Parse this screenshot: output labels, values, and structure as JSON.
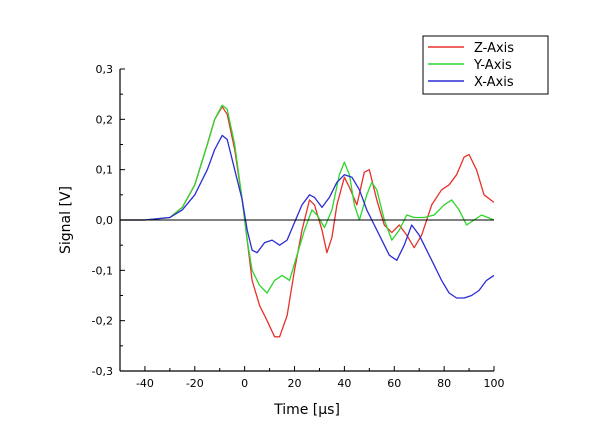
{
  "chart_data": {
    "type": "line",
    "title": "",
    "xlabel": "Time [µs]",
    "ylabel": "Signal [V]",
    "xlim": [
      -50,
      100
    ],
    "ylim": [
      -0.3,
      0.3
    ],
    "x_ticks": [
      -40,
      -20,
      0,
      20,
      40,
      60,
      80,
      100
    ],
    "x_tick_labels": [
      "-40",
      "-20",
      "0",
      "20",
      "40",
      "60",
      "80",
      "100"
    ],
    "y_ticks": [
      -0.3,
      -0.2,
      -0.1,
      0.0,
      0.1,
      0.2,
      0.3
    ],
    "y_tick_labels": [
      "-0,3",
      "-0,2",
      "-0,1",
      "0,0",
      "0,1",
      "0,2",
      "0,3"
    ],
    "grid": false,
    "zero_line": true,
    "legend_position": "top-right",
    "series": [
      {
        "name": "Z-Axis",
        "color": "#e8302c",
        "points": [
          [
            -50,
            0
          ],
          [
            -40,
            0
          ],
          [
            -30,
            0.005
          ],
          [
            -25,
            0.025
          ],
          [
            -20,
            0.07
          ],
          [
            -15,
            0.15
          ],
          [
            -12,
            0.2
          ],
          [
            -9,
            0.225
          ],
          [
            -7,
            0.21
          ],
          [
            -4,
            0.14
          ],
          [
            -1,
            0.04
          ],
          [
            1,
            -0.04
          ],
          [
            3,
            -0.12
          ],
          [
            6,
            -0.17
          ],
          [
            9,
            -0.2
          ],
          [
            12,
            -0.232
          ],
          [
            14,
            -0.232
          ],
          [
            17,
            -0.19
          ],
          [
            20,
            -0.1
          ],
          [
            23,
            -0.02
          ],
          [
            26,
            0.04
          ],
          [
            28,
            0.03
          ],
          [
            31,
            -0.02
          ],
          [
            33,
            -0.065
          ],
          [
            35,
            -0.035
          ],
          [
            37,
            0.03
          ],
          [
            40,
            0.085
          ],
          [
            42,
            0.065
          ],
          [
            45,
            0.03
          ],
          [
            48,
            0.095
          ],
          [
            50,
            0.1
          ],
          [
            53,
            0.04
          ],
          [
            56,
            -0.01
          ],
          [
            59,
            -0.025
          ],
          [
            62,
            -0.01
          ],
          [
            65,
            -0.03
          ],
          [
            68,
            -0.055
          ],
          [
            71,
            -0.03
          ],
          [
            75,
            0.03
          ],
          [
            79,
            0.06
          ],
          [
            82,
            0.07
          ],
          [
            85,
            0.09
          ],
          [
            88,
            0.125
          ],
          [
            90,
            0.13
          ],
          [
            93,
            0.1
          ],
          [
            96,
            0.05
          ],
          [
            100,
            0.035
          ]
        ]
      },
      {
        "name": "Y-Axis",
        "color": "#2cd62c",
        "points": [
          [
            -50,
            0
          ],
          [
            -40,
            0
          ],
          [
            -30,
            0.005
          ],
          [
            -25,
            0.025
          ],
          [
            -20,
            0.07
          ],
          [
            -15,
            0.15
          ],
          [
            -12,
            0.2
          ],
          [
            -9,
            0.228
          ],
          [
            -7,
            0.22
          ],
          [
            -4,
            0.15
          ],
          [
            -1,
            0.04
          ],
          [
            1,
            -0.04
          ],
          [
            3,
            -0.1
          ],
          [
            6,
            -0.13
          ],
          [
            9,
            -0.145
          ],
          [
            12,
            -0.12
          ],
          [
            15,
            -0.11
          ],
          [
            18,
            -0.12
          ],
          [
            21,
            -0.07
          ],
          [
            24,
            -0.02
          ],
          [
            27,
            0.02
          ],
          [
            29,
            0.01
          ],
          [
            32,
            -0.015
          ],
          [
            35,
            0.02
          ],
          [
            38,
            0.09
          ],
          [
            40,
            0.115
          ],
          [
            42,
            0.09
          ],
          [
            44,
            0.03
          ],
          [
            46,
            0.0
          ],
          [
            49,
            0.05
          ],
          [
            51,
            0.075
          ],
          [
            53,
            0.06
          ],
          [
            56,
            0.0
          ],
          [
            59,
            -0.04
          ],
          [
            62,
            -0.02
          ],
          [
            65,
            0.01
          ],
          [
            68,
            0.005
          ],
          [
            72,
            0.005
          ],
          [
            76,
            0.01
          ],
          [
            80,
            0.03
          ],
          [
            83,
            0.04
          ],
          [
            86,
            0.02
          ],
          [
            89,
            -0.01
          ],
          [
            92,
            0.0
          ],
          [
            95,
            0.01
          ],
          [
            100,
            0.0
          ]
        ]
      },
      {
        "name": "X-Axis",
        "color": "#2c2cd6",
        "points": [
          [
            -50,
            0
          ],
          [
            -40,
            0
          ],
          [
            -30,
            0.005
          ],
          [
            -25,
            0.02
          ],
          [
            -20,
            0.05
          ],
          [
            -15,
            0.1
          ],
          [
            -12,
            0.14
          ],
          [
            -9,
            0.168
          ],
          [
            -7,
            0.16
          ],
          [
            -4,
            0.1
          ],
          [
            -1,
            0.04
          ],
          [
            1,
            -0.02
          ],
          [
            3,
            -0.06
          ],
          [
            5,
            -0.065
          ],
          [
            8,
            -0.045
          ],
          [
            11,
            -0.04
          ],
          [
            14,
            -0.05
          ],
          [
            17,
            -0.04
          ],
          [
            20,
            -0.005
          ],
          [
            23,
            0.03
          ],
          [
            26,
            0.05
          ],
          [
            28,
            0.045
          ],
          [
            31,
            0.025
          ],
          [
            34,
            0.045
          ],
          [
            37,
            0.075
          ],
          [
            40,
            0.09
          ],
          [
            43,
            0.085
          ],
          [
            46,
            0.06
          ],
          [
            49,
            0.02
          ],
          [
            52,
            -0.01
          ],
          [
            55,
            -0.04
          ],
          [
            58,
            -0.07
          ],
          [
            61,
            -0.08
          ],
          [
            64,
            -0.05
          ],
          [
            67,
            -0.01
          ],
          [
            70,
            -0.03
          ],
          [
            73,
            -0.06
          ],
          [
            76,
            -0.09
          ],
          [
            79,
            -0.12
          ],
          [
            82,
            -0.145
          ],
          [
            85,
            -0.155
          ],
          [
            88,
            -0.155
          ],
          [
            91,
            -0.15
          ],
          [
            94,
            -0.14
          ],
          [
            97,
            -0.12
          ],
          [
            100,
            -0.11
          ]
        ]
      }
    ]
  }
}
